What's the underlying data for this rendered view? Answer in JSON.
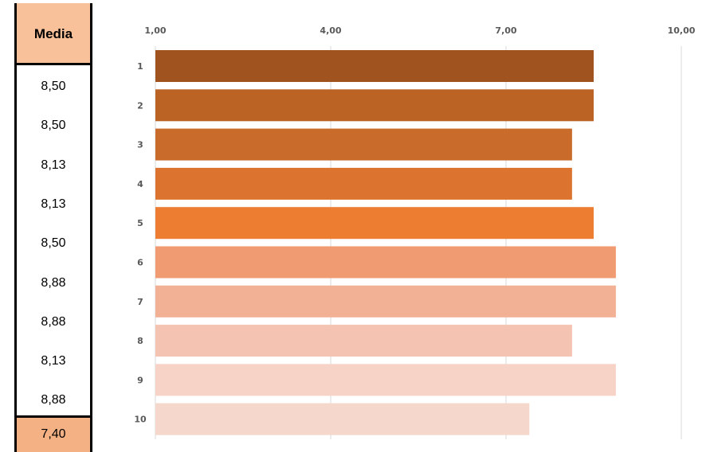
{
  "media_table": {
    "header": "Media",
    "values": [
      "8,50",
      "8,50",
      "8,13",
      "8,13",
      "8,50",
      "8,88",
      "8,88",
      "8,13",
      "8,88"
    ],
    "footer": "7,40",
    "header_color": "#f9c199",
    "footer_color": "#f4b183"
  },
  "chart_data": {
    "type": "bar",
    "orientation": "horizontal",
    "categories": [
      "1",
      "2",
      "3",
      "4",
      "5",
      "6",
      "7",
      "8",
      "9",
      "10"
    ],
    "values": [
      8.5,
      8.5,
      8.13,
      8.13,
      8.5,
      8.88,
      8.88,
      8.13,
      8.88,
      7.4
    ],
    "xlim": [
      1,
      10
    ],
    "xticks": [
      1,
      4,
      7,
      10
    ],
    "xtick_labels": [
      "1,00",
      "4,00",
      "7,00",
      "10,00"
    ],
    "axis_position": "top",
    "grid": true,
    "bar_colors": [
      "#a0521f",
      "#bb6225",
      "#c96b2b",
      "#dc742f",
      "#ed7d31",
      "#f09b72",
      "#f2b094",
      "#f4c3b1",
      "#f6d3c6",
      "#f6d7cb"
    ]
  }
}
